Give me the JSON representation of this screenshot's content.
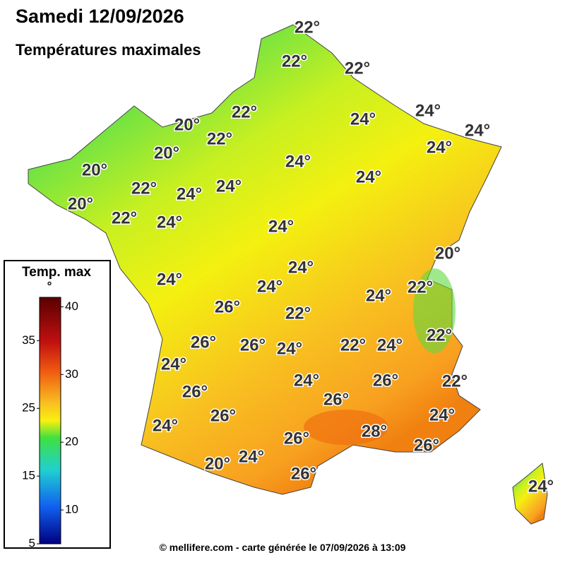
{
  "header": {
    "title": "Samedi 12/09/2026",
    "subtitle": "Températures maximales"
  },
  "legend": {
    "title": "Temp. max",
    "unit": "°",
    "range": [
      5,
      41.4
    ],
    "ticks": [
      5,
      10,
      15,
      20,
      25,
      30,
      35,
      40
    ]
  },
  "labels": [
    "22°",
    "22°",
    "22°",
    "22°",
    "20°",
    "22°",
    "24°",
    "24°",
    "24°",
    "24°",
    "20°",
    "24°",
    "20°",
    "24°",
    "22°",
    "24°",
    "24°",
    "20°",
    "22°",
    "24°",
    "24°",
    "20°",
    "24°",
    "24°",
    "24°",
    "22°",
    "24°",
    "26°",
    "22°",
    "22°",
    "26°",
    "26°",
    "24°",
    "22°",
    "24°",
    "24°",
    "24°",
    "26°",
    "22°",
    "26°",
    "26°",
    "24°",
    "26°",
    "24°",
    "28°",
    "26°",
    "26°",
    "24°",
    "20°",
    "26°",
    "24°"
  ],
  "footer": "© mellifere.com - carte générée le 07/09/2026 à 13:09"
}
